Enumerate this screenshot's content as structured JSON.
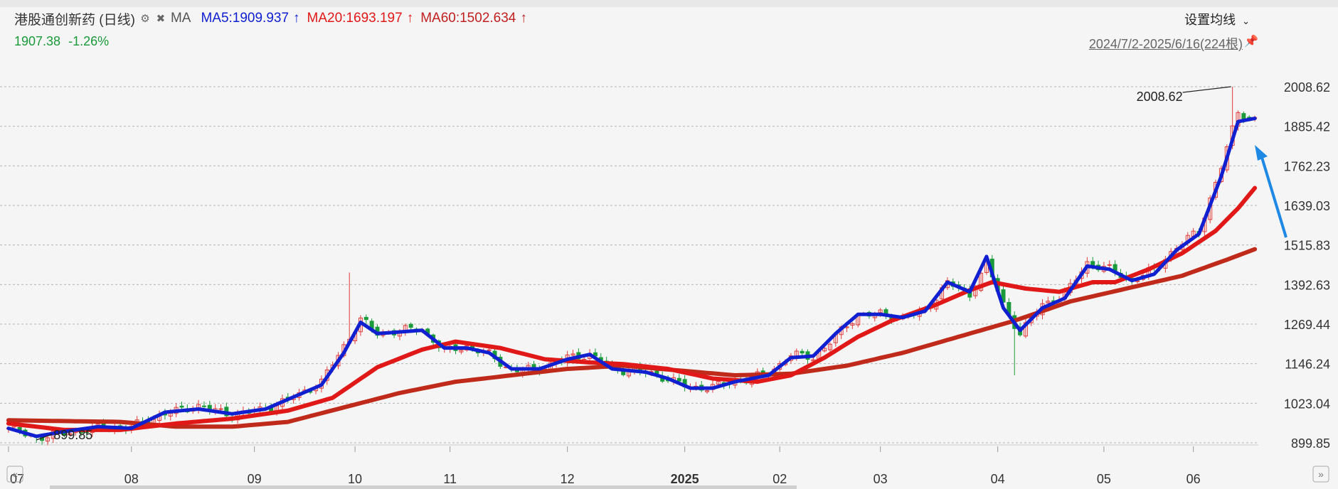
{
  "header": {
    "title": "港股通创新药 (日线)",
    "ma_label": "MA",
    "ma5": "MA5:1909.937",
    "ma20": "MA20:1693.197",
    "ma60": "MA60:1502.634",
    "price": "1907.38",
    "change": "-1.26%",
    "settings_label": "设置均线",
    "range": "2024/7/2-2025/6/16(224根)"
  },
  "colors": {
    "up": "#e03c3c",
    "down": "#1a9a3a",
    "ma5": "#1020d0",
    "ma20": "#e01818",
    "ma60": "#c02a1a",
    "grid": "#b5b5b5"
  },
  "chart_data": {
    "type": "candlestick",
    "x_range": [
      "2024/7/2",
      "2025/6/16"
    ],
    "bar_count": 224,
    "ylim": [
      899.85,
      2008.62
    ],
    "y_ticks": [
      "2008.62",
      "1885.42",
      "1762.23",
      "1639.03",
      "1515.83",
      "1392.63",
      "1269.44",
      "1146.24",
      "1023.04",
      "899.85"
    ],
    "x_ticks": [
      {
        "label": "07",
        "index": 0
      },
      {
        "label": "08",
        "index": 22
      },
      {
        "label": "09",
        "index": 44
      },
      {
        "label": "10",
        "index": 62
      },
      {
        "label": "11",
        "index": 79
      },
      {
        "label": "12",
        "index": 100
      },
      {
        "label": "2025",
        "index": 121
      },
      {
        "label": "02",
        "index": 138
      },
      {
        "label": "03",
        "index": 156
      },
      {
        "label": "04",
        "index": 177
      },
      {
        "label": "05",
        "index": 196
      },
      {
        "label": "06",
        "index": 212
      }
    ],
    "annotations": [
      {
        "text": "2008.62",
        "index": 219,
        "value": 2008.62
      },
      {
        "text": "899.85",
        "index": 5,
        "value": 899.85
      }
    ],
    "close_anchors": [
      [
        0,
        945
      ],
      [
        5,
        915
      ],
      [
        10,
        930
      ],
      [
        16,
        945
      ],
      [
        22,
        950
      ],
      [
        28,
        990
      ],
      [
        34,
        1015
      ],
      [
        40,
        985
      ],
      [
        46,
        1005
      ],
      [
        52,
        1050
      ],
      [
        56,
        1090
      ],
      [
        60,
        1200
      ],
      [
        63,
        1285
      ],
      [
        66,
        1240
      ],
      [
        70,
        1250
      ],
      [
        74,
        1255
      ],
      [
        78,
        1185
      ],
      [
        82,
        1200
      ],
      [
        86,
        1175
      ],
      [
        90,
        1125
      ],
      [
        95,
        1130
      ],
      [
        100,
        1165
      ],
      [
        104,
        1175
      ],
      [
        108,
        1130
      ],
      [
        114,
        1120
      ],
      [
        118,
        1100
      ],
      [
        122,
        1070
      ],
      [
        126,
        1075
      ],
      [
        130,
        1090
      ],
      [
        136,
        1115
      ],
      [
        140,
        1175
      ],
      [
        144,
        1165
      ],
      [
        148,
        1230
      ],
      [
        152,
        1300
      ],
      [
        156,
        1300
      ],
      [
        160,
        1290
      ],
      [
        164,
        1310
      ],
      [
        168,
        1400
      ],
      [
        172,
        1360
      ],
      [
        175,
        1460
      ],
      [
        178,
        1330
      ],
      [
        181,
        1240
      ],
      [
        185,
        1330
      ],
      [
        189,
        1360
      ],
      [
        193,
        1460
      ],
      [
        197,
        1440
      ],
      [
        201,
        1405
      ],
      [
        205,
        1440
      ],
      [
        209,
        1510
      ],
      [
        213,
        1560
      ],
      [
        217,
        1760
      ],
      [
        220,
        1930
      ],
      [
        223,
        1907.38
      ]
    ],
    "ma5": {
      "name": "MA5",
      "value": "1909.937",
      "anchors": [
        [
          0,
          945
        ],
        [
          5,
          920
        ],
        [
          10,
          935
        ],
        [
          16,
          950
        ],
        [
          22,
          945
        ],
        [
          28,
          995
        ],
        [
          34,
          1005
        ],
        [
          40,
          990
        ],
        [
          46,
          1005
        ],
        [
          52,
          1050
        ],
        [
          56,
          1080
        ],
        [
          60,
          1180
        ],
        [
          63,
          1275
        ],
        [
          66,
          1240
        ],
        [
          70,
          1245
        ],
        [
          74,
          1250
        ],
        [
          78,
          1195
        ],
        [
          82,
          1195
        ],
        [
          86,
          1180
        ],
        [
          90,
          1130
        ],
        [
          95,
          1130
        ],
        [
          100,
          1160
        ],
        [
          104,
          1175
        ],
        [
          108,
          1130
        ],
        [
          114,
          1120
        ],
        [
          118,
          1100
        ],
        [
          122,
          1070
        ],
        [
          126,
          1070
        ],
        [
          130,
          1090
        ],
        [
          136,
          1110
        ],
        [
          140,
          1165
        ],
        [
          144,
          1170
        ],
        [
          148,
          1240
        ],
        [
          152,
          1300
        ],
        [
          156,
          1300
        ],
        [
          160,
          1290
        ],
        [
          164,
          1310
        ],
        [
          168,
          1400
        ],
        [
          172,
          1370
        ],
        [
          175,
          1480
        ],
        [
          178,
          1320
        ],
        [
          181,
          1250
        ],
        [
          185,
          1320
        ],
        [
          189,
          1350
        ],
        [
          193,
          1450
        ],
        [
          197,
          1440
        ],
        [
          201,
          1405
        ],
        [
          205,
          1425
        ],
        [
          209,
          1500
        ],
        [
          213,
          1550
        ],
        [
          217,
          1730
        ],
        [
          220,
          1900
        ],
        [
          223,
          1909.94
        ]
      ]
    },
    "ma20": {
      "name": "MA20",
      "value": "1693.197",
      "anchors": [
        [
          0,
          960
        ],
        [
          10,
          940
        ],
        [
          20,
          940
        ],
        [
          30,
          960
        ],
        [
          40,
          975
        ],
        [
          50,
          1000
        ],
        [
          58,
          1040
        ],
        [
          66,
          1135
        ],
        [
          74,
          1190
        ],
        [
          80,
          1215
        ],
        [
          88,
          1195
        ],
        [
          96,
          1160
        ],
        [
          104,
          1150
        ],
        [
          110,
          1145
        ],
        [
          118,
          1130
        ],
        [
          126,
          1100
        ],
        [
          134,
          1090
        ],
        [
          140,
          1110
        ],
        [
          146,
          1165
        ],
        [
          152,
          1230
        ],
        [
          158,
          1280
        ],
        [
          166,
          1330
        ],
        [
          172,
          1375
        ],
        [
          176,
          1400
        ],
        [
          182,
          1380
        ],
        [
          188,
          1370
        ],
        [
          194,
          1400
        ],
        [
          198,
          1400
        ],
        [
          204,
          1440
        ],
        [
          210,
          1490
        ],
        [
          216,
          1560
        ],
        [
          220,
          1630
        ],
        [
          223,
          1693.2
        ]
      ]
    },
    "ma60": {
      "name": "MA60",
      "value": "1502.634",
      "anchors": [
        [
          0,
          970
        ],
        [
          20,
          965
        ],
        [
          30,
          950
        ],
        [
          40,
          950
        ],
        [
          50,
          965
        ],
        [
          60,
          1010
        ],
        [
          70,
          1055
        ],
        [
          80,
          1090
        ],
        [
          90,
          1110
        ],
        [
          100,
          1130
        ],
        [
          110,
          1140
        ],
        [
          120,
          1125
        ],
        [
          130,
          1110
        ],
        [
          140,
          1115
        ],
        [
          150,
          1140
        ],
        [
          160,
          1180
        ],
        [
          170,
          1230
        ],
        [
          180,
          1280
        ],
        [
          190,
          1340
        ],
        [
          200,
          1380
        ],
        [
          210,
          1420
        ],
        [
          218,
          1470
        ],
        [
          223,
          1502.63
        ]
      ]
    }
  }
}
